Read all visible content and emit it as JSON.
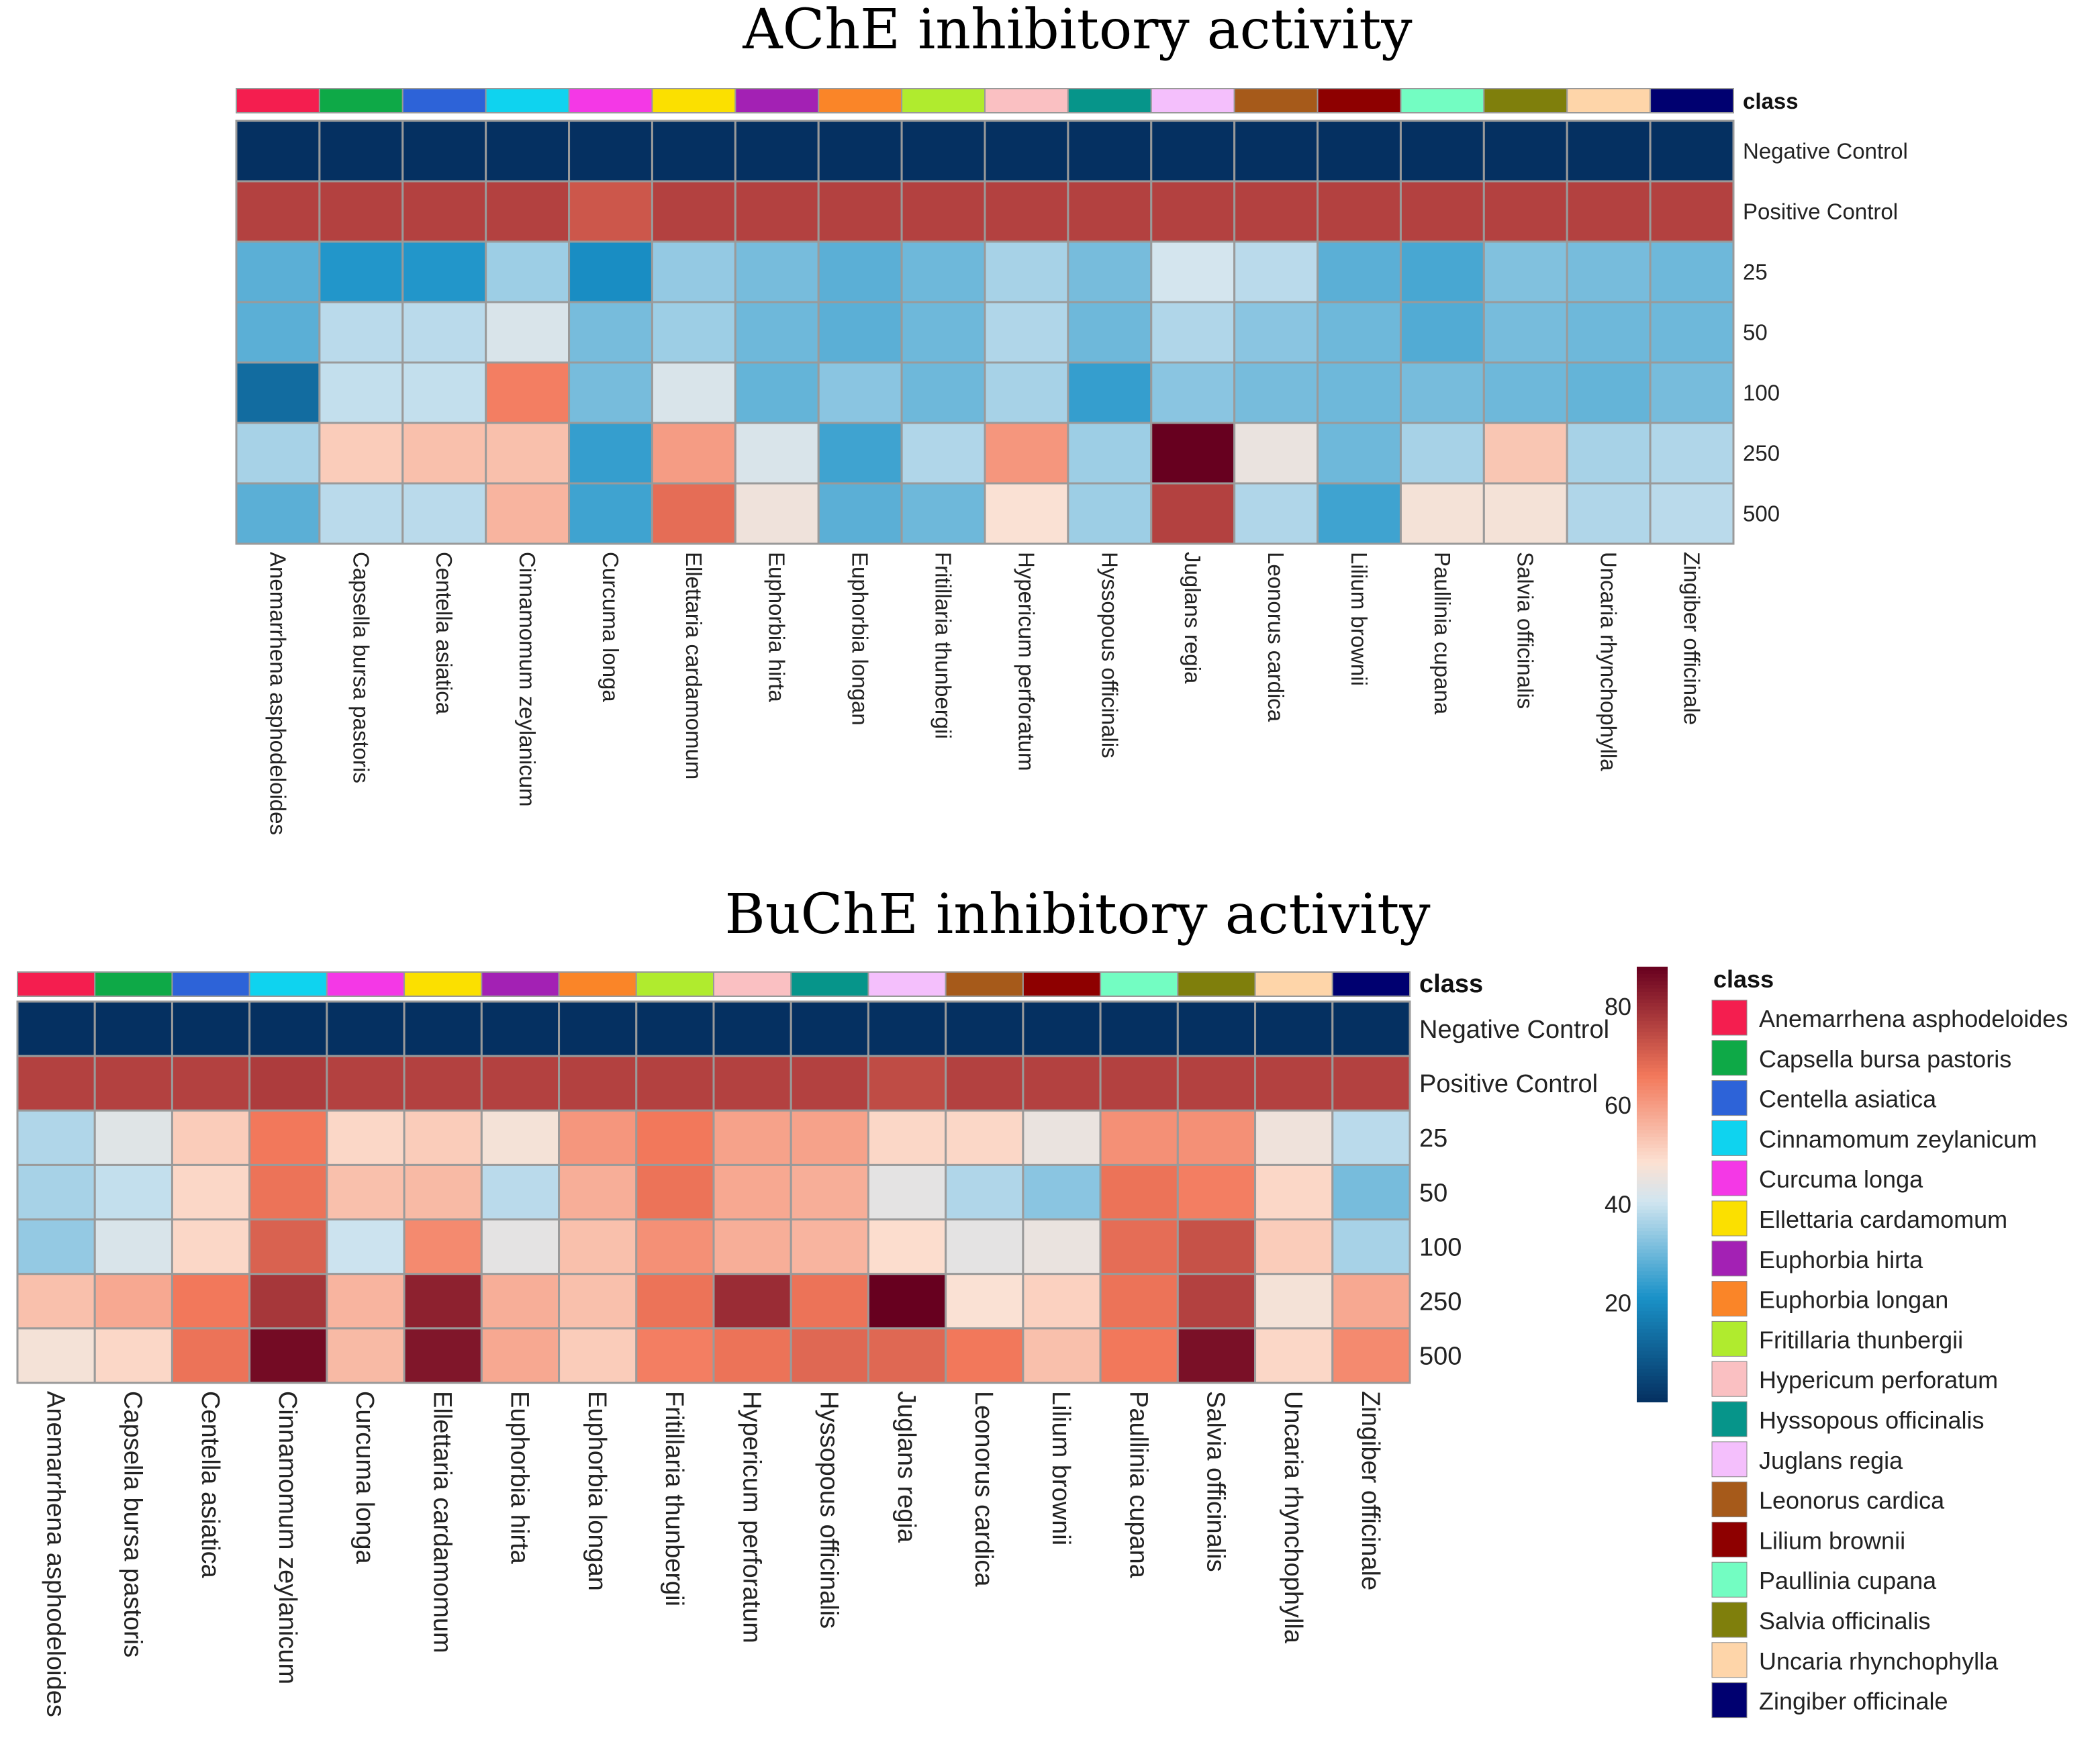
{
  "species": [
    "Anemarrhena asphodeloides",
    "Capsella bursa pastoris",
    "Centella asiatica",
    "Cinnamomum zeylanicum",
    "Curcuma longa",
    "Ellettaria cardamomum",
    "Euphorbia hirta",
    "Euphorbia longan",
    "Fritillaria thunbergii",
    "Hypericum perforatum",
    "Hyssopous officinalis",
    "Juglans regia",
    "Leonorus cardica",
    "Lilium brownii",
    "Paullinia cupana",
    "Salvia officinalis",
    "Uncaria rhynchophylla",
    "Zingiber officinale"
  ],
  "class_colors": [
    "#f41e4f",
    "#0ea947",
    "#2d63d8",
    "#0fd3ef",
    "#f438e6",
    "#fbe000",
    "#a321b4",
    "#fa8528",
    "#b0eb2e",
    "#fac0c2",
    "#06958a",
    "#f4bffc",
    "#a65a1a",
    "#8e0000",
    "#73fdc2",
    "#7f7f0c",
    "#fed5a9",
    "#000070"
  ],
  "colorscale": {
    "min": 0,
    "max": 88,
    "ticks": [
      20,
      40,
      60,
      80
    ],
    "stops": [
      [
        0,
        "#053061"
      ],
      [
        0.24,
        "#1a92c8"
      ],
      [
        0.46,
        "#d1e5f0"
      ],
      [
        0.55,
        "#fce1d2"
      ],
      [
        0.75,
        "#f2785b"
      ],
      [
        1,
        "#67001f"
      ]
    ]
  },
  "legend": {
    "title": "class"
  },
  "chart_data": [
    {
      "type": "heatmap",
      "title": "AChE inhibitory activity",
      "class_label": "class",
      "rows": [
        "Negative Control",
        "Positive Control",
        "25",
        "50",
        "100",
        "250",
        "500"
      ],
      "columns": [
        "Anemarrhena asphodeloides",
        "Capsella bursa pastoris",
        "Centella asiatica",
        "Cinnamomum zeylanicum",
        "Curcuma longa",
        "Ellettaria cardamomum",
        "Euphorbia hirta",
        "Euphorbia longan",
        "Fritillaria thunbergii",
        "Hypericum perforatum",
        "Hyssopous officinalis",
        "Juglans regia",
        "Leonorus cardica",
        "Lilium brownii",
        "Paullinia cupana",
        "Salvia officinalis",
        "Uncaria rhynchophylla",
        "Zingiber officinale"
      ],
      "values": [
        [
          0,
          0,
          0,
          0,
          0,
          0,
          0,
          0,
          0,
          0,
          0,
          0,
          0,
          0,
          0,
          0,
          0,
          0
        ],
        [
          76,
          76,
          76,
          76,
          72,
          76,
          76,
          76,
          76,
          76,
          76,
          76,
          76,
          76,
          76,
          76,
          76,
          76
        ],
        [
          28,
          22,
          22,
          35,
          20,
          34,
          31,
          28,
          30,
          36,
          31,
          41,
          38,
          28,
          26,
          32,
          31,
          30
        ],
        [
          28,
          38,
          38,
          42,
          31,
          35,
          30,
          28,
          30,
          37,
          30,
          37,
          33,
          30,
          27,
          31,
          30,
          30
        ],
        [
          13,
          39,
          39,
          65,
          31,
          42,
          29,
          33,
          30,
          36,
          24,
          33,
          31,
          30,
          31,
          30,
          29,
          31
        ],
        [
          36,
          52,
          54,
          54,
          24,
          60,
          42,
          25,
          37,
          61,
          35,
          88,
          45,
          30,
          36,
          53,
          36,
          37
        ],
        [
          28,
          38,
          38,
          56,
          25,
          68,
          46,
          28,
          30,
          48,
          35,
          76,
          37,
          25,
          47,
          47,
          37,
          38
        ]
      ]
    },
    {
      "type": "heatmap",
      "title": "BuChE inhibitory activity",
      "class_label": "class",
      "rows": [
        "Negative Control",
        "Positive Control",
        "25",
        "50",
        "100",
        "250",
        "500"
      ],
      "columns": [
        "Anemarrhena asphodeloides",
        "Capsella bursa pastoris",
        "Centella asiatica",
        "Cinnamomum zeylanicum",
        "Curcuma longa",
        "Ellettaria cardamomum",
        "Euphorbia hirta",
        "Euphorbia longan",
        "Fritillaria thunbergii",
        "Hypericum perforatum",
        "Hyssopous officinalis",
        "Juglans regia",
        "Leonorus cardica",
        "Lilium brownii",
        "Paullinia cupana",
        "Salvia officinalis",
        "Uncaria rhynchophylla",
        "Zingiber officinale"
      ],
      "values": [
        [
          0,
          0,
          0,
          0,
          0,
          0,
          0,
          0,
          0,
          0,
          0,
          0,
          0,
          0,
          0,
          0,
          0,
          0
        ],
        [
          76,
          76,
          76,
          77,
          76,
          76,
          76,
          76,
          76,
          76,
          76,
          74,
          76,
          76,
          76,
          76,
          76,
          76
        ],
        [
          37,
          43,
          52,
          66,
          50,
          52,
          47,
          61,
          66,
          59,
          59,
          50,
          50,
          45,
          62,
          62,
          46,
          38
        ],
        [
          36,
          39,
          50,
          67,
          54,
          55,
          38,
          57,
          67,
          58,
          57,
          44,
          37,
          33,
          67,
          65,
          50,
          31
        ],
        [
          34,
          42,
          50,
          70,
          40,
          63,
          44,
          54,
          62,
          57,
          56,
          49,
          44,
          45,
          68,
          73,
          52,
          36
        ],
        [
          54,
          58,
          66,
          78,
          56,
          82,
          57,
          54,
          67,
          80,
          67,
          88,
          48,
          51,
          67,
          76,
          47,
          58
        ],
        [
          47,
          50,
          67,
          86,
          55,
          84,
          58,
          52,
          65,
          67,
          69,
          69,
          66,
          54,
          66,
          85,
          50,
          63
        ]
      ]
    }
  ]
}
